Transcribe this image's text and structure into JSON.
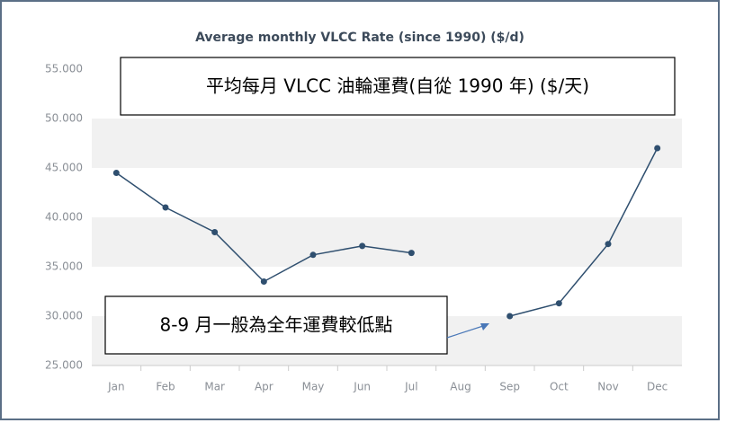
{
  "chart_data": {
    "type": "line",
    "title": "Average monthly VLCC Rate (since 1990) ($/d)",
    "categories": [
      "Jan",
      "Feb",
      "Mar",
      "Apr",
      "May",
      "Jun",
      "Jul",
      "Aug",
      "Sep",
      "Oct",
      "Nov",
      "Dec"
    ],
    "series": [
      {
        "name": "VLCC Rate",
        "color": "#2f4f6f",
        "values": [
          44500,
          41000,
          38500,
          33500,
          36200,
          37100,
          36400,
          null,
          30000,
          31300,
          37300,
          47000
        ]
      }
    ],
    "ylim": [
      25000,
      55000
    ],
    "yticks": [
      {
        "value": 25000,
        "label": "25.000"
      },
      {
        "value": 30000,
        "label": "30.000"
      },
      {
        "value": 35000,
        "label": "35.000"
      },
      {
        "value": 40000,
        "label": "40.000"
      },
      {
        "value": 45000,
        "label": "45.000"
      },
      {
        "value": 50000,
        "label": "50.000"
      },
      {
        "value": 55000,
        "label": "55.000"
      }
    ],
    "bands": true,
    "annotations": [
      "平均每月 VLCC 油輪運費(自從 1990 年) ($/天)",
      "8-9 月一般為全年運費較低點"
    ]
  }
}
